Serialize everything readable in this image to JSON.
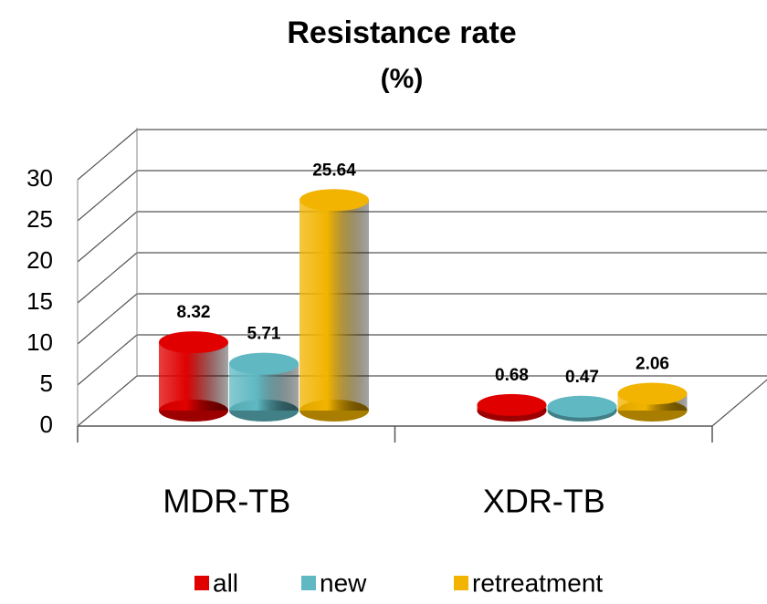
{
  "chart_data": {
    "type": "bar3d",
    "title": "Resistance rate",
    "subtitle": "(%)",
    "categories": [
      "MDR-TB",
      "XDR-TB"
    ],
    "series": [
      {
        "name": "all",
        "color": "#e00000",
        "values": [
          8.32,
          0.68
        ]
      },
      {
        "name": "new",
        "color": "#5fb8c2",
        "values": [
          5.71,
          0.47
        ]
      },
      {
        "name": "retreatment",
        "color": "#f2b400",
        "values": [
          25.64,
          2.06
        ]
      }
    ],
    "ylim": [
      0,
      30
    ],
    "yticks": [
      0,
      5,
      10,
      15,
      20,
      25,
      30
    ],
    "grid": true,
    "legend": "bottom"
  }
}
